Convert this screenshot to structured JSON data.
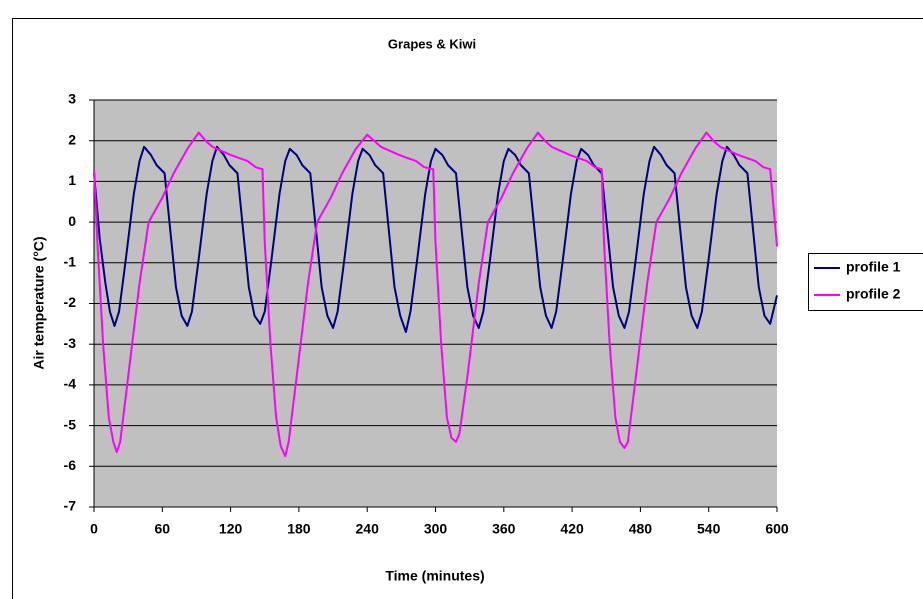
{
  "chart_data": {
    "type": "line",
    "title": "Grapes & Kiwi",
    "xlabel": "Time (minutes)",
    "ylabel": "Air temperature (°C)",
    "xlim": [
      0,
      600
    ],
    "xticks": [
      0,
      60,
      120,
      180,
      240,
      300,
      360,
      420,
      480,
      540,
      600
    ],
    "ylim": [
      -7,
      3
    ],
    "yticks": [
      -7,
      -6,
      -5,
      -4,
      -3,
      -2,
      -1,
      0,
      1,
      2,
      3
    ],
    "grid": true,
    "legend": "right",
    "series": [
      {
        "name": "profile 1",
        "color": "#000080",
        "x": [
          0,
          5,
          10,
          14,
          18,
          22,
          28,
          35,
          40,
          44,
          50,
          55,
          62,
          67,
          72,
          77,
          82,
          86,
          92,
          99,
          104,
          108,
          114,
          119,
          126,
          131,
          136,
          141,
          146,
          150,
          156,
          163,
          168,
          172,
          178,
          183,
          190,
          195,
          200,
          205,
          210,
          214,
          220,
          227,
          232,
          236,
          242,
          247,
          254,
          259,
          264,
          269,
          274,
          278,
          284,
          291,
          296,
          300,
          306,
          311,
          318,
          323,
          328,
          333,
          338,
          342,
          348,
          355,
          360,
          364,
          370,
          375,
          382,
          387,
          392,
          397,
          402,
          406,
          412,
          419,
          424,
          428,
          434,
          439,
          446,
          451,
          456,
          461,
          466,
          470,
          476,
          483,
          488,
          492,
          498,
          503,
          510,
          515,
          520,
          525,
          530,
          534,
          540,
          547,
          552,
          556,
          562,
          567,
          574,
          579,
          584,
          589,
          594,
          600
        ],
        "values": [
          1.2,
          -0.4,
          -1.5,
          -2.2,
          -2.55,
          -2.2,
          -0.9,
          0.7,
          1.5,
          1.85,
          1.65,
          1.4,
          1.2,
          -0.2,
          -1.6,
          -2.3,
          -2.55,
          -2.2,
          -0.9,
          0.7,
          1.5,
          1.85,
          1.65,
          1.4,
          1.2,
          -0.2,
          -1.6,
          -2.3,
          -2.5,
          -2.2,
          -0.9,
          0.7,
          1.5,
          1.8,
          1.65,
          1.4,
          1.2,
          -0.2,
          -1.6,
          -2.3,
          -2.6,
          -2.2,
          -0.9,
          0.7,
          1.5,
          1.8,
          1.65,
          1.4,
          1.2,
          -0.2,
          -1.6,
          -2.3,
          -2.7,
          -2.2,
          -0.9,
          0.7,
          1.5,
          1.8,
          1.65,
          1.4,
          1.2,
          -0.2,
          -1.6,
          -2.3,
          -2.6,
          -2.2,
          -0.9,
          0.7,
          1.5,
          1.8,
          1.65,
          1.4,
          1.2,
          -0.2,
          -1.6,
          -2.3,
          -2.6,
          -2.2,
          -0.9,
          0.7,
          1.5,
          1.8,
          1.65,
          1.4,
          1.2,
          -0.2,
          -1.6,
          -2.3,
          -2.6,
          -2.2,
          -0.9,
          0.7,
          1.5,
          1.85,
          1.65,
          1.4,
          1.2,
          -0.2,
          -1.6,
          -2.3,
          -2.6,
          -2.2,
          -0.9,
          0.7,
          1.5,
          1.85,
          1.65,
          1.4,
          1.2,
          -0.2,
          -1.6,
          -2.3,
          -2.5,
          -1.8
        ]
      },
      {
        "name": "profile 2",
        "color": "#FF00FF",
        "x": [
          0,
          3,
          8,
          13,
          17,
          20,
          23,
          30,
          40,
          48,
          60,
          70,
          82,
          92,
          98,
          104,
          120,
          135,
          142,
          148,
          150,
          155,
          160,
          164,
          168,
          171,
          178,
          188,
          196,
          208,
          218,
          230,
          240,
          246,
          252,
          268,
          283,
          290,
          298,
          300,
          305,
          310,
          314,
          318,
          321,
          328,
          338,
          346,
          358,
          368,
          380,
          390,
          396,
          402,
          418,
          433,
          440,
          446,
          448,
          453,
          458,
          462,
          466,
          469,
          476,
          486,
          494,
          506,
          516,
          528,
          538,
          544,
          550,
          566,
          581,
          588,
          594,
          600
        ],
        "values": [
          1.3,
          -0.5,
          -3.0,
          -4.8,
          -5.4,
          -5.65,
          -5.4,
          -3.8,
          -1.5,
          0,
          0.6,
          1.2,
          1.8,
          2.2,
          2.0,
          1.85,
          1.65,
          1.5,
          1.35,
          1.3,
          -0.5,
          -3.0,
          -4.8,
          -5.5,
          -5.75,
          -5.4,
          -3.8,
          -1.5,
          0,
          0.6,
          1.2,
          1.8,
          2.15,
          2.0,
          1.85,
          1.65,
          1.5,
          1.35,
          1.3,
          -0.5,
          -3.0,
          -4.8,
          -5.3,
          -5.4,
          -5.2,
          -3.8,
          -1.5,
          0,
          0.6,
          1.2,
          1.8,
          2.2,
          2.0,
          1.85,
          1.65,
          1.5,
          1.35,
          1.3,
          -0.5,
          -3.0,
          -4.8,
          -5.4,
          -5.55,
          -5.4,
          -3.8,
          -1.5,
          0,
          0.6,
          1.2,
          1.8,
          2.2,
          2.0,
          1.85,
          1.65,
          1.5,
          1.35,
          1.3,
          -0.6
        ]
      }
    ]
  }
}
